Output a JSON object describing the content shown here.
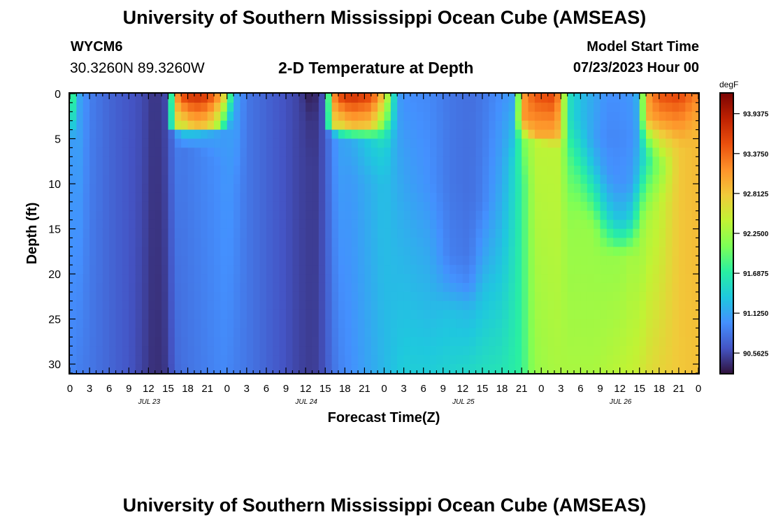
{
  "header": {
    "title": "University of Southern Mississippi Ocean Cube (AMSEAS)",
    "station_id": "WYCM6",
    "coordinates": "30.3260N  89.3260W",
    "plot_title": "2-D Temperature at Depth",
    "model_start_label": "Model Start Time",
    "model_start_value": "07/23/2023 Hour 00"
  },
  "footer": {
    "repeat_title": "University of Southern Mississippi Ocean Cube (AMSEAS)"
  },
  "chart_data": {
    "type": "heatmap",
    "title": "2-D Temperature at Depth",
    "xlabel": "Forecast Time(Z)",
    "ylabel": "Depth (ft)",
    "x_range_hours": [
      0,
      96
    ],
    "y_range_ft": [
      0,
      31
    ],
    "y_inverted": true,
    "x_tick_labels": [
      "0",
      "3",
      "6",
      "9",
      "12",
      "15",
      "18",
      "21",
      "0",
      "3",
      "6",
      "9",
      "12",
      "15",
      "18",
      "21",
      "0",
      "3",
      "6",
      "9",
      "12",
      "15",
      "18",
      "21",
      "0",
      "3",
      "6",
      "9",
      "12",
      "15",
      "18",
      "21",
      "0"
    ],
    "date_labels": [
      {
        "label": "JUL 23",
        "at_hour": 12
      },
      {
        "label": "JUL 24",
        "at_hour": 36
      },
      {
        "label": "JUL 25",
        "at_hour": 60
      },
      {
        "label": "JUL 26",
        "at_hour": 84
      }
    ],
    "y_tick_labels": [
      "0",
      "5",
      "10",
      "15",
      "20",
      "25",
      "30"
    ],
    "y_tick_values": [
      0,
      5,
      10,
      15,
      20,
      25,
      30
    ],
    "colorbar": {
      "unit": "degF",
      "range": [
        90.28,
        94.22
      ],
      "tick_values": [
        93.9375,
        93.375,
        92.8125,
        92.25,
        91.6875,
        91.125,
        90.5625
      ],
      "tick_labels": [
        "93.9375",
        "93.3750",
        "92.8125",
        "92.2500",
        "91.6875",
        "91.1250",
        "90.5625"
      ],
      "colors": [
        "#30123b",
        "#4454c4",
        "#4490fe",
        "#1fc8de",
        "#29efa2",
        "#7dff56",
        "#c1f334",
        "#f1ca3a",
        "#fe922a",
        "#ea4f0d",
        "#be2102",
        "#7a0403"
      ]
    },
    "temperature_columns": [
      {
        "hour": 0,
        "profile": [
          [
            0,
            92.3
          ],
          [
            3,
            91.8
          ],
          [
            5,
            91.0
          ],
          [
            31,
            90.95
          ]
        ]
      },
      {
        "hour": 1,
        "profile": [
          [
            0,
            91.2
          ],
          [
            31,
            90.9
          ]
        ]
      },
      {
        "hour": 3,
        "profile": [
          [
            0,
            90.9
          ],
          [
            31,
            90.85
          ]
        ]
      },
      {
        "hour": 6,
        "profile": [
          [
            0,
            90.75
          ],
          [
            31,
            90.75
          ]
        ]
      },
      {
        "hour": 9,
        "profile": [
          [
            0,
            90.65
          ],
          [
            31,
            90.65
          ]
        ]
      },
      {
        "hour": 11,
        "profile": [
          [
            0,
            90.6
          ],
          [
            31,
            90.55
          ]
        ]
      },
      {
        "hour": 13,
        "profile": [
          [
            0,
            90.45
          ],
          [
            31,
            90.42
          ]
        ]
      },
      {
        "hour": 15,
        "profile": [
          [
            0,
            90.6
          ],
          [
            31,
            90.5
          ]
        ]
      },
      {
        "hour": 16,
        "profile": [
          [
            0,
            92.9
          ],
          [
            3.5,
            92.6
          ],
          [
            4,
            91.0
          ],
          [
            5,
            90.9
          ],
          [
            31,
            90.75
          ]
        ]
      },
      {
        "hour": 17,
        "profile": [
          [
            0,
            93.6
          ],
          [
            3.5,
            92.5
          ],
          [
            4.5,
            91.3
          ],
          [
            6,
            90.85
          ],
          [
            31,
            90.8
          ]
        ]
      },
      {
        "hour": 19,
        "profile": [
          [
            0,
            93.8
          ],
          [
            3.5,
            92.9
          ],
          [
            4.5,
            91.3
          ],
          [
            5.5,
            91.05
          ],
          [
            6,
            90.9
          ],
          [
            31,
            90.85
          ]
        ]
      },
      {
        "hour": 21,
        "profile": [
          [
            0,
            93.7
          ],
          [
            3.5,
            92.8
          ],
          [
            4.5,
            91.2
          ],
          [
            5.5,
            91.05
          ],
          [
            7,
            90.95
          ],
          [
            31,
            90.9
          ]
        ]
      },
      {
        "hour": 23,
        "profile": [
          [
            0,
            93.1
          ],
          [
            3.5,
            92.2
          ],
          [
            4.5,
            91.1
          ],
          [
            8,
            91.0
          ],
          [
            31,
            90.95
          ]
        ]
      },
      {
        "hour": 24,
        "profile": [
          [
            0,
            92.5
          ],
          [
            2.5,
            91.6
          ],
          [
            4,
            91.05
          ],
          [
            9,
            91.05
          ],
          [
            31,
            90.95
          ]
        ]
      },
      {
        "hour": 25,
        "profile": [
          [
            0,
            91.2
          ],
          [
            10,
            91.0
          ],
          [
            31,
            90.9
          ]
        ]
      },
      {
        "hour": 27,
        "profile": [
          [
            0,
            90.85
          ],
          [
            31,
            90.85
          ]
        ]
      },
      {
        "hour": 31,
        "profile": [
          [
            0,
            90.7
          ],
          [
            31,
            90.7
          ]
        ]
      },
      {
        "hour": 35,
        "profile": [
          [
            0,
            90.55
          ],
          [
            31,
            90.55
          ]
        ]
      },
      {
        "hour": 37,
        "profile": [
          [
            0,
            90.3
          ],
          [
            3,
            90.45
          ],
          [
            8,
            90.5
          ],
          [
            31,
            90.5
          ]
        ]
      },
      {
        "hour": 38,
        "profile": [
          [
            0,
            90.5
          ],
          [
            31,
            90.55
          ]
        ]
      },
      {
        "hour": 39,
        "profile": [
          [
            0,
            90.7
          ],
          [
            31,
            90.65
          ]
        ]
      },
      {
        "hour": 40,
        "profile": [
          [
            0,
            93.0
          ],
          [
            3.5,
            92.7
          ],
          [
            4.5,
            91.0
          ],
          [
            5.5,
            90.9
          ],
          [
            31,
            90.8
          ]
        ]
      },
      {
        "hour": 41,
        "profile": [
          [
            0,
            93.6
          ],
          [
            3.5,
            92.6
          ],
          [
            4.5,
            91.6
          ],
          [
            5.5,
            91.1
          ],
          [
            31,
            90.9
          ]
        ]
      },
      {
        "hour": 43,
        "profile": [
          [
            0,
            93.8
          ],
          [
            3.5,
            92.9
          ],
          [
            4.5,
            91.8
          ],
          [
            5.5,
            91.15
          ],
          [
            10,
            91.05
          ],
          [
            31,
            91.0
          ]
        ]
      },
      {
        "hour": 46,
        "profile": [
          [
            0,
            93.6
          ],
          [
            3.5,
            92.8
          ],
          [
            4.5,
            91.9
          ],
          [
            5.5,
            91.4
          ],
          [
            10,
            91.2
          ],
          [
            31,
            91.15
          ]
        ]
      },
      {
        "hour": 48,
        "profile": [
          [
            0,
            92.8
          ],
          [
            3,
            92.2
          ],
          [
            4.5,
            91.7
          ],
          [
            6,
            91.45
          ],
          [
            10,
            91.3
          ],
          [
            31,
            91.25
          ]
        ]
      },
      {
        "hour": 50,
        "profile": [
          [
            0,
            91.1
          ],
          [
            31,
            91.35
          ]
        ]
      },
      {
        "hour": 51,
        "profile": [
          [
            0,
            91.0
          ],
          [
            31,
            91.4
          ]
        ]
      },
      {
        "hour": 55,
        "profile": [
          [
            0,
            90.95
          ],
          [
            10,
            91.0
          ],
          [
            18,
            91.15
          ],
          [
            31,
            91.4
          ]
        ]
      },
      {
        "hour": 58,
        "profile": [
          [
            0,
            90.85
          ],
          [
            10,
            90.85
          ],
          [
            18,
            90.9
          ],
          [
            21,
            91.05
          ],
          [
            24,
            91.3
          ],
          [
            31,
            91.45
          ]
        ]
      },
      {
        "hour": 61,
        "profile": [
          [
            0,
            90.8
          ],
          [
            10,
            90.8
          ],
          [
            18,
            90.85
          ],
          [
            21,
            90.95
          ],
          [
            24,
            91.25
          ],
          [
            31,
            91.5
          ]
        ]
      },
      {
        "hour": 63,
        "profile": [
          [
            0,
            90.85
          ],
          [
            12,
            90.9
          ],
          [
            18,
            91.1
          ],
          [
            22,
            91.3
          ],
          [
            31,
            91.55
          ]
        ]
      },
      {
        "hour": 66,
        "profile": [
          [
            0,
            91.0
          ],
          [
            12,
            91.2
          ],
          [
            31,
            91.6
          ]
        ]
      },
      {
        "hour": 68,
        "profile": [
          [
            0,
            91.1
          ],
          [
            8,
            91.5
          ],
          [
            31,
            91.7
          ]
        ]
      },
      {
        "hour": 69,
        "profile": [
          [
            0,
            93.0
          ],
          [
            3,
            93.1
          ],
          [
            5,
            92.0
          ],
          [
            10,
            91.75
          ],
          [
            31,
            91.75
          ]
        ]
      },
      {
        "hour": 71,
        "profile": [
          [
            0,
            93.5
          ],
          [
            4.5,
            93.0
          ],
          [
            5.5,
            92.4
          ],
          [
            31,
            92.2
          ]
        ]
      },
      {
        "hour": 74,
        "profile": [
          [
            0,
            93.6
          ],
          [
            4.5,
            93.0
          ],
          [
            6,
            92.4
          ],
          [
            31,
            92.3
          ]
        ]
      },
      {
        "hour": 75,
        "profile": [
          [
            0,
            93.0
          ],
          [
            4.5,
            92.8
          ],
          [
            6,
            92.4
          ],
          [
            31,
            92.3
          ]
        ]
      },
      {
        "hour": 76,
        "profile": [
          [
            0,
            91.6
          ],
          [
            3,
            91.6
          ],
          [
            7,
            91.9
          ],
          [
            15,
            92.2
          ],
          [
            31,
            92.3
          ]
        ]
      },
      {
        "hour": 78,
        "profile": [
          [
            0,
            91.3
          ],
          [
            3,
            91.3
          ],
          [
            6,
            91.5
          ],
          [
            10,
            91.9
          ],
          [
            14,
            92.2
          ],
          [
            31,
            92.3
          ]
        ]
      },
      {
        "hour": 80,
        "profile": [
          [
            0,
            91.15
          ],
          [
            5,
            91.1
          ],
          [
            8,
            91.3
          ],
          [
            12,
            91.8
          ],
          [
            15,
            92.2
          ],
          [
            31,
            92.3
          ]
        ]
      },
      {
        "hour": 82,
        "profile": [
          [
            0,
            91.0
          ],
          [
            5,
            90.95
          ],
          [
            9,
            91.05
          ],
          [
            13,
            91.4
          ],
          [
            16,
            91.9
          ],
          [
            18,
            92.2
          ],
          [
            31,
            92.35
          ]
        ]
      },
      {
        "hour": 84,
        "profile": [
          [
            0,
            91.0
          ],
          [
            5,
            90.95
          ],
          [
            10,
            91.0
          ],
          [
            14,
            91.3
          ],
          [
            16.5,
            91.8
          ],
          [
            18,
            92.2
          ],
          [
            31,
            92.4
          ]
        ]
      },
      {
        "hour": 86,
        "profile": [
          [
            0,
            91.05
          ],
          [
            5,
            91.0
          ],
          [
            10,
            91.1
          ],
          [
            14,
            91.5
          ],
          [
            16,
            91.9
          ],
          [
            18,
            92.3
          ],
          [
            31,
            92.45
          ]
        ]
      },
      {
        "hour": 87,
        "profile": [
          [
            0,
            91.3
          ],
          [
            5,
            91.2
          ],
          [
            9,
            91.4
          ],
          [
            13,
            91.9
          ],
          [
            16,
            92.2
          ],
          [
            31,
            92.5
          ]
        ]
      },
      {
        "hour": 88,
        "profile": [
          [
            0,
            93.0
          ],
          [
            3,
            92.9
          ],
          [
            5,
            92.0
          ],
          [
            7,
            91.6
          ],
          [
            10,
            91.9
          ],
          [
            14,
            92.3
          ],
          [
            31,
            92.6
          ]
        ]
      },
      {
        "hour": 90,
        "profile": [
          [
            0,
            93.5
          ],
          [
            3,
            93.1
          ],
          [
            5,
            92.6
          ],
          [
            8,
            92.1
          ],
          [
            12,
            92.4
          ],
          [
            31,
            92.7
          ]
        ]
      },
      {
        "hour": 93,
        "profile": [
          [
            0,
            93.6
          ],
          [
            3,
            93.2
          ],
          [
            6,
            92.8
          ],
          [
            31,
            92.8
          ]
        ]
      },
      {
        "hour": 96,
        "profile": [
          [
            0,
            93.2
          ],
          [
            4,
            92.9
          ],
          [
            31,
            92.85
          ]
        ]
      }
    ]
  }
}
